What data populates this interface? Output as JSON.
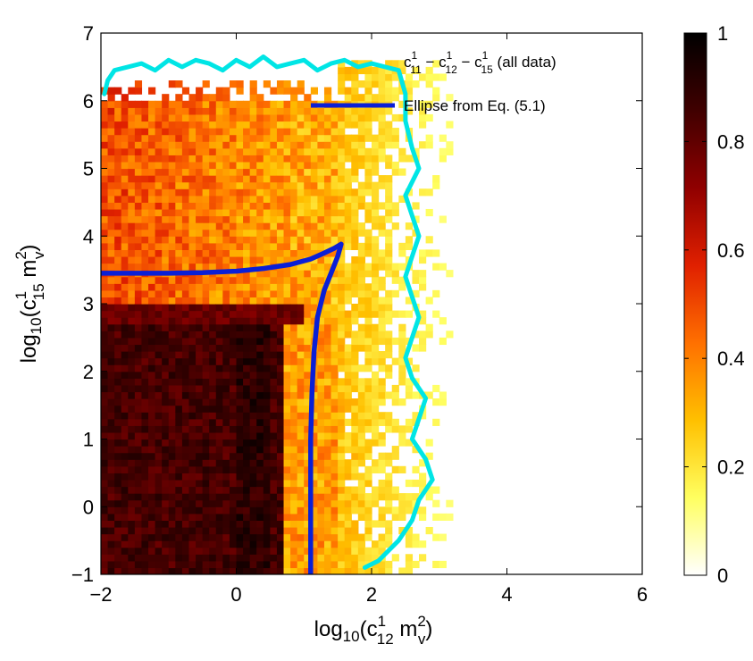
{
  "chart_data": {
    "type": "heatmap",
    "xlabel": {
      "base": "log",
      "base_sub": "10",
      "open": "(c",
      "sup": "1",
      "sub": "12",
      "mid": " m",
      "sup2": "2",
      "sub2": "v",
      "close": ")"
    },
    "ylabel": {
      "base": "log",
      "base_sub": "10",
      "open": "(c",
      "sup": "1",
      "sub": "15",
      "mid": " m",
      "sup2": "2",
      "sub2": "v",
      "close": ")"
    },
    "xlim": [
      -2,
      6
    ],
    "ylim": [
      -1,
      7
    ],
    "xticks": [
      "−2",
      "0",
      "2",
      "4",
      "6"
    ],
    "xtick_values": [
      -2,
      0,
      2,
      4,
      6
    ],
    "yticks": [
      "−1",
      "0",
      "1",
      "2",
      "3",
      "4",
      "5",
      "6",
      "7"
    ],
    "ytick_values": [
      -1,
      0,
      1,
      2,
      3,
      4,
      5,
      6,
      7
    ],
    "colorbar": {
      "range": [
        0,
        1
      ],
      "ticks": [
        "0",
        "0.2",
        "0.4",
        "0.6",
        "0.8",
        "1"
      ],
      "tick_values": [
        0,
        0.2,
        0.4,
        0.6,
        0.8,
        1
      ],
      "colormap": "hot-reversed",
      "colors": [
        "#ffffff",
        "#ffff60",
        "#ffc000",
        "#ff7000",
        "#e02000",
        "#900000",
        "#400000",
        "#000000"
      ]
    },
    "legend": {
      "position": "top-right",
      "entries": [
        {
          "parts": [
            "c",
            "1",
            "11",
            " − c",
            "1",
            "12",
            " − c",
            "1",
            "15",
            " (all data)"
          ],
          "color": "#00e5e5",
          "style": "contour"
        },
        {
          "text": "Ellipse from Eq. (5.1)",
          "color": "#0a1fd6",
          "style": "line"
        }
      ]
    },
    "heatmap_regions": [
      {
        "name": "dark-core",
        "x": [
          -2,
          0.7
        ],
        "y": [
          -1,
          2.7
        ],
        "value": 0.85
      },
      {
        "name": "dark-triangle",
        "x": [
          -2,
          1.0
        ],
        "y": [
          2.7,
          3.0
        ],
        "value": 0.78
      },
      {
        "name": "mid-band",
        "x": [
          0.7,
          1.5
        ],
        "y": [
          -1,
          3.0
        ],
        "value": 0.35
      },
      {
        "name": "upper-field",
        "x": [
          -2,
          1.5
        ],
        "y": [
          3.0,
          6.3
        ],
        "value": 0.45
      },
      {
        "name": "outer-fringe",
        "x": [
          1.5,
          3.2
        ],
        "y": [
          -1,
          6.6
        ],
        "value": 0.15
      }
    ],
    "series": [
      {
        "name": "Ellipse from Eq. (5.1)",
        "color": "#0a1fd6",
        "x": [
          -2.0,
          -1.5,
          -1.0,
          -0.5,
          0.0,
          0.4,
          0.8,
          1.1,
          1.3,
          1.45,
          1.55,
          1.5,
          1.4,
          1.3,
          1.2,
          1.15,
          1.12,
          1.1,
          1.1,
          1.1,
          1.1
        ],
        "y": [
          3.45,
          3.45,
          3.45,
          3.46,
          3.48,
          3.52,
          3.58,
          3.66,
          3.75,
          3.82,
          3.88,
          3.7,
          3.45,
          3.2,
          2.8,
          2.3,
          1.7,
          1.0,
          0.3,
          -0.5,
          -1.0
        ]
      },
      {
        "name": "c11 − c12 − c15 (all data)",
        "color": "#00e5e5",
        "x": [
          -1.95,
          -1.9,
          -1.8,
          -1.6,
          -1.4,
          -1.2,
          -1.0,
          -0.8,
          -0.6,
          -0.4,
          -0.2,
          0.0,
          0.2,
          0.4,
          0.6,
          0.8,
          1.0,
          1.2,
          1.4,
          1.6,
          1.8,
          2.0,
          2.2,
          2.4,
          2.5,
          2.5,
          2.6,
          2.7,
          2.5,
          2.6,
          2.7,
          2.6,
          2.5,
          2.6,
          2.7,
          2.6,
          2.5,
          2.6,
          2.8,
          2.7,
          2.6,
          2.8,
          2.9,
          2.7,
          2.6,
          2.4,
          2.2,
          2.1,
          2.0,
          1.9
        ],
        "y": [
          6.1,
          6.3,
          6.45,
          6.5,
          6.55,
          6.45,
          6.6,
          6.5,
          6.6,
          6.55,
          6.45,
          6.6,
          6.5,
          6.65,
          6.5,
          6.55,
          6.6,
          6.45,
          6.55,
          6.6,
          6.5,
          6.55,
          6.5,
          6.45,
          6.1,
          5.7,
          5.3,
          5.0,
          4.6,
          4.3,
          4.0,
          3.7,
          3.4,
          3.1,
          2.8,
          2.5,
          2.2,
          1.9,
          1.6,
          1.3,
          1.0,
          0.7,
          0.4,
          0.1,
          -0.2,
          -0.5,
          -0.7,
          -0.8,
          -0.85,
          -0.9
        ]
      }
    ]
  }
}
